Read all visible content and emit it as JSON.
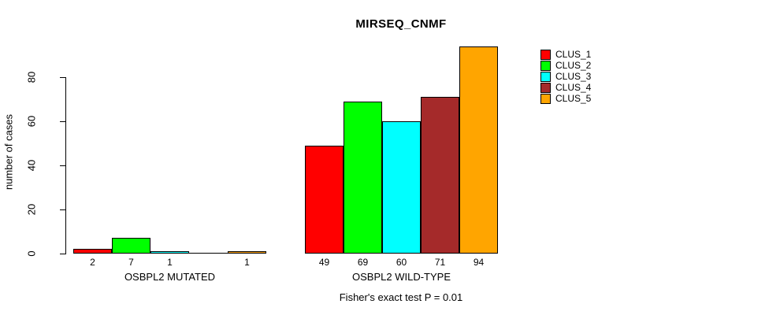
{
  "chart_data": {
    "type": "bar",
    "title": "MIRSEQ_CNMF",
    "ylabel": "number of cases",
    "xlabel": "",
    "annotation": "Fisher's exact test P = 0.01",
    "categories": [
      "OSBPL2 MUTATED",
      "OSBPL2 WILD-TYPE"
    ],
    "series": [
      {
        "name": "CLUS_1",
        "color": "#FF0000",
        "values": [
          2,
          49
        ]
      },
      {
        "name": "CLUS_2",
        "color": "#00FF00",
        "values": [
          7,
          69
        ]
      },
      {
        "name": "CLUS_3",
        "color": "#00FFFF",
        "values": [
          1,
          60
        ]
      },
      {
        "name": "CLUS_4",
        "color": "#A52A2A",
        "values": [
          0,
          71
        ]
      },
      {
        "name": "CLUS_5",
        "color": "#FFA500",
        "values": [
          1,
          94
        ]
      }
    ],
    "bar_value_labels": [
      [
        "2",
        "7",
        "1",
        "",
        "1"
      ],
      [
        "49",
        "69",
        "60",
        "71",
        "94"
      ]
    ],
    "yticks": [
      0,
      20,
      40,
      60,
      80
    ],
    "ylim": [
      0,
      94
    ],
    "grid": false,
    "legend_position": "right"
  }
}
